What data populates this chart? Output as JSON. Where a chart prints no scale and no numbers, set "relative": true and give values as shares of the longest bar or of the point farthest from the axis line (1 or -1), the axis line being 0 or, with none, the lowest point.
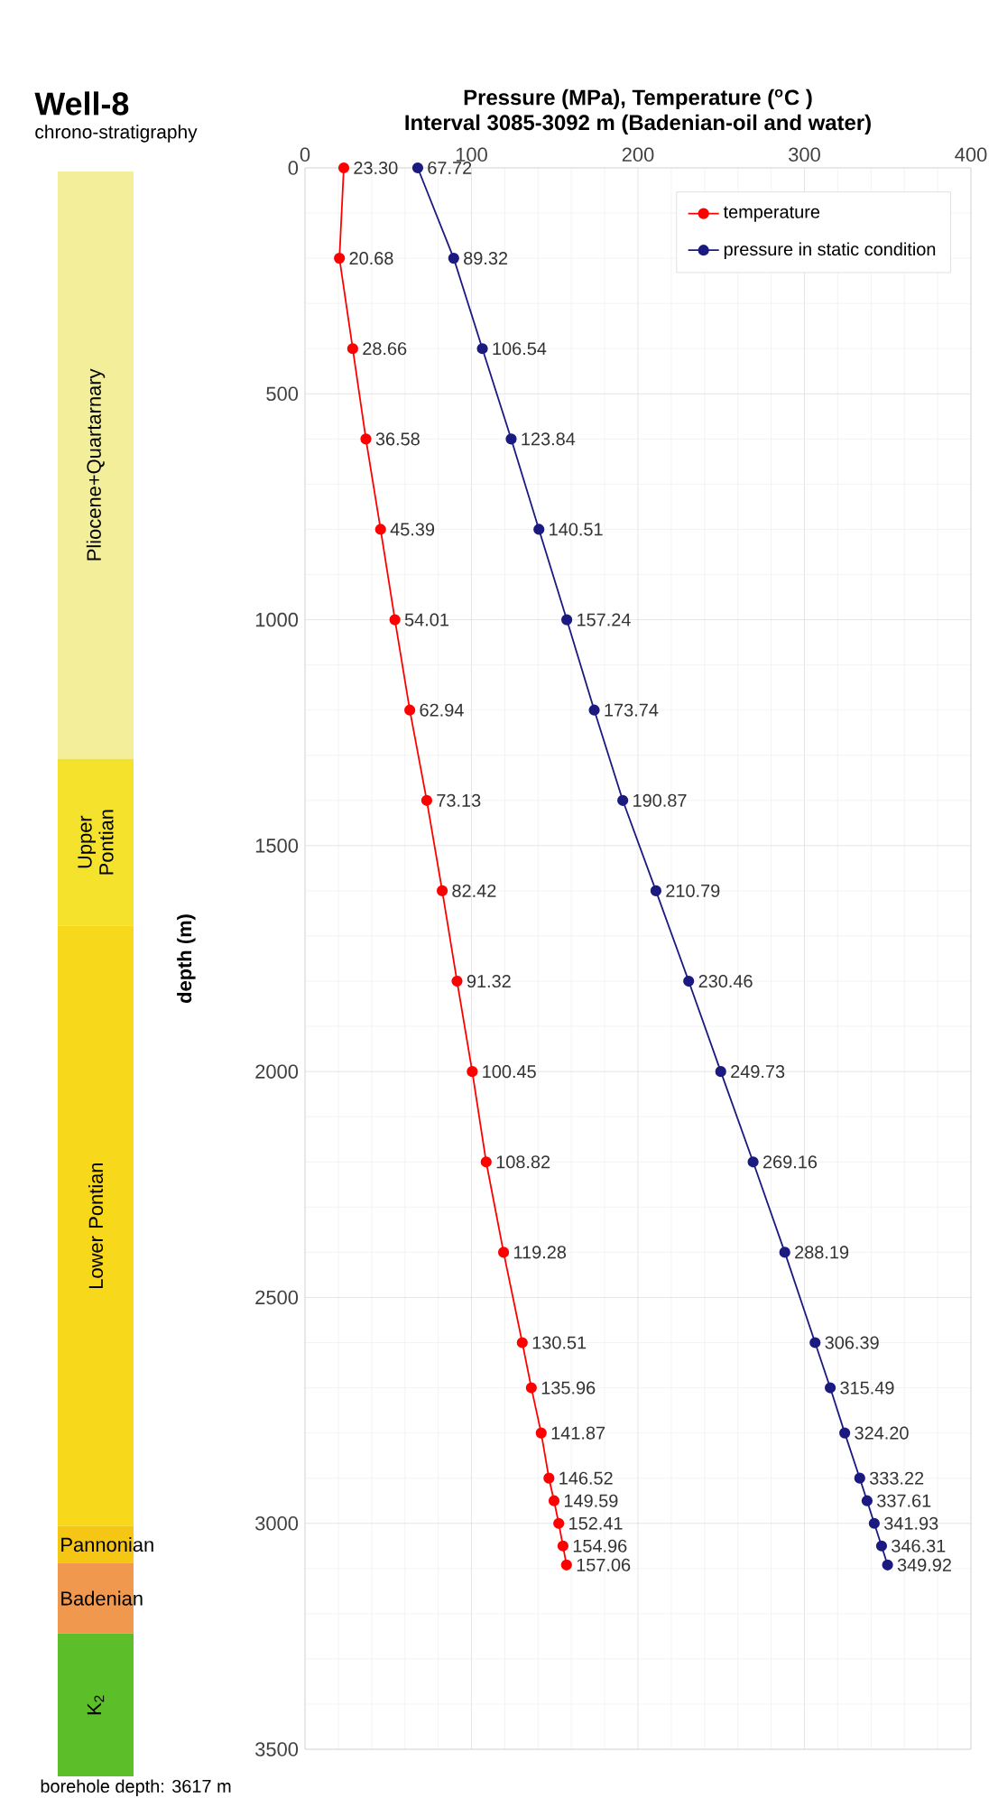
{
  "chart_data": [
    {
      "type": "bar",
      "stacked": true,
      "relative": true,
      "title": "Well-8",
      "subtitle": "chrono-stratigraphy",
      "annotations": [
        "borehole depth: 3617 m"
      ],
      "categories": [
        null
      ],
      "series": [
        {
          "name": "K$_{2}$",
          "color": "#5cbf2a",
          "values": [
            0.089
          ]
        },
        {
          "name": "Badenian",
          "color": "#f0984e",
          "values": [
            0.044
          ]
        },
        {
          "name": "Pannonian",
          "color": "#f6c614",
          "values": [
            0.023
          ]
        },
        {
          "name": "Lower Pontian",
          "color": "#f8d81a",
          "values": [
            0.374
          ]
        },
        {
          "name": "Upper Pontian",
          "color": "#f5e22c",
          "values": [
            0.104
          ]
        },
        {
          "name": "Pliocene+Quartarnary",
          "color": "#f2ee9a",
          "values": [
            0.366
          ]
        }
      ]
    },
    {
      "type": "line",
      "orientation": "horizontal",
      "title": "Pressure (MPa), Temperature ($^{o}$C )",
      "subtitle": "Interval 3085-3092 m (Badenian-oil and water)",
      "ylabel": "depth (m)",
      "xlim": [
        0,
        400
      ],
      "xticks": [
        0,
        100,
        200,
        300,
        400
      ],
      "ylim": [
        3500,
        0
      ],
      "yticks": [
        0,
        500,
        1000,
        1500,
        2000,
        2500,
        3000,
        3500
      ],
      "grid": true,
      "legend": "top right",
      "marker": "circle",
      "line_style": "solid",
      "series": [
        {
          "name": "temperature",
          "color": "#ff0000",
          "x": [
            0,
            200,
            400,
            600,
            800,
            1000,
            1200,
            1400,
            1600,
            1800,
            2000,
            2200,
            2400,
            2600,
            2700,
            2800,
            2900,
            2950,
            3000,
            3050,
            3092
          ],
          "values": [
            23.3,
            20.68,
            28.66,
            36.58,
            45.39,
            54.01,
            62.94,
            73.13,
            82.42,
            91.32,
            100.45,
            108.82,
            119.28,
            130.51,
            135.96,
            141.87,
            146.52,
            149.59,
            152.41,
            154.96,
            157.06
          ],
          "value_labels": [
            "23.30",
            "20.68",
            "28.66",
            "36.58",
            "45.39",
            "54.01",
            "62.94",
            "73.13",
            "82.42",
            "91.32",
            "100.45",
            "108.82",
            "119.28",
            "130.51",
            "135.96",
            "141.87",
            "146.52",
            "149.59",
            "152.41",
            "154.96",
            "157.06"
          ]
        },
        {
          "name": "pressure in static condition",
          "color": "#1a1a80",
          "x": [
            0,
            200,
            400,
            600,
            800,
            1000,
            1200,
            1400,
            1600,
            1800,
            2000,
            2200,
            2400,
            2600,
            2700,
            2800,
            2900,
            2950,
            3000,
            3050,
            3092
          ],
          "values": [
            67.72,
            89.32,
            106.54,
            123.84,
            140.51,
            157.24,
            173.74,
            190.87,
            210.79,
            230.46,
            249.73,
            269.16,
            288.19,
            306.39,
            315.49,
            324.2,
            333.22,
            337.61,
            341.93,
            346.31,
            349.92
          ],
          "value_labels": [
            "67.72",
            "89.32",
            "106.54",
            "123.84",
            "140.51",
            "157.24",
            "173.74",
            "190.87",
            "210.79",
            "230.46",
            "249.73",
            "269.16",
            "288.19",
            "306.39",
            "315.49",
            "324.20",
            "333.22",
            "337.61",
            "341.93",
            "346.31",
            "349.92"
          ]
        }
      ]
    }
  ]
}
